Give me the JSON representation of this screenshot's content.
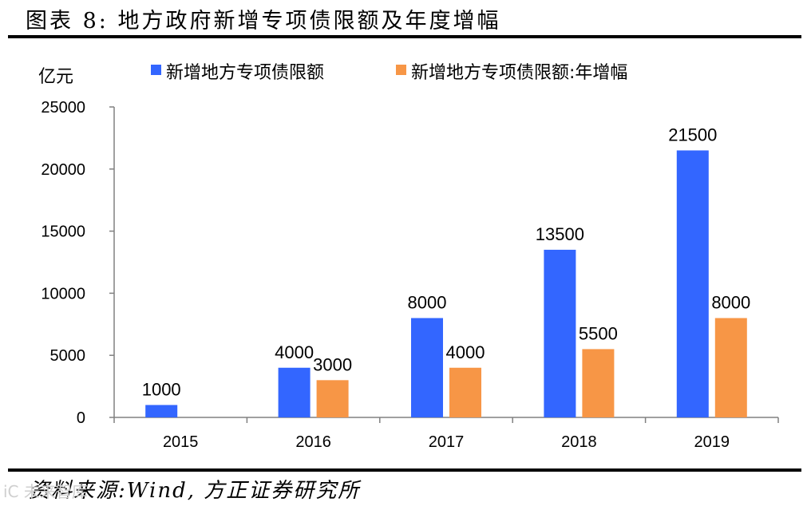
{
  "title": "图表 8:  地方政府新增专项债限额及年度增幅",
  "source": "资料来源:Wind, 方正证券研究所",
  "watermark": "iC 未来智库",
  "chart_data": {
    "type": "bar",
    "ylabel": "亿元",
    "categories": [
      "2015",
      "2016",
      "2017",
      "2018",
      "2019"
    ],
    "ylim": [
      0,
      25000
    ],
    "yticks": [
      0,
      5000,
      10000,
      15000,
      20000,
      25000
    ],
    "grid": false,
    "legend_position": "top",
    "series": [
      {
        "name": "新增地方专项债限额",
        "color": "#3366FF",
        "values": [
          1000,
          4000,
          8000,
          13500,
          21500
        ]
      },
      {
        "name": "新增地方专项债限额:年增幅",
        "color": "#F79646",
        "values": [
          null,
          3000,
          4000,
          5500,
          8000
        ]
      }
    ]
  }
}
